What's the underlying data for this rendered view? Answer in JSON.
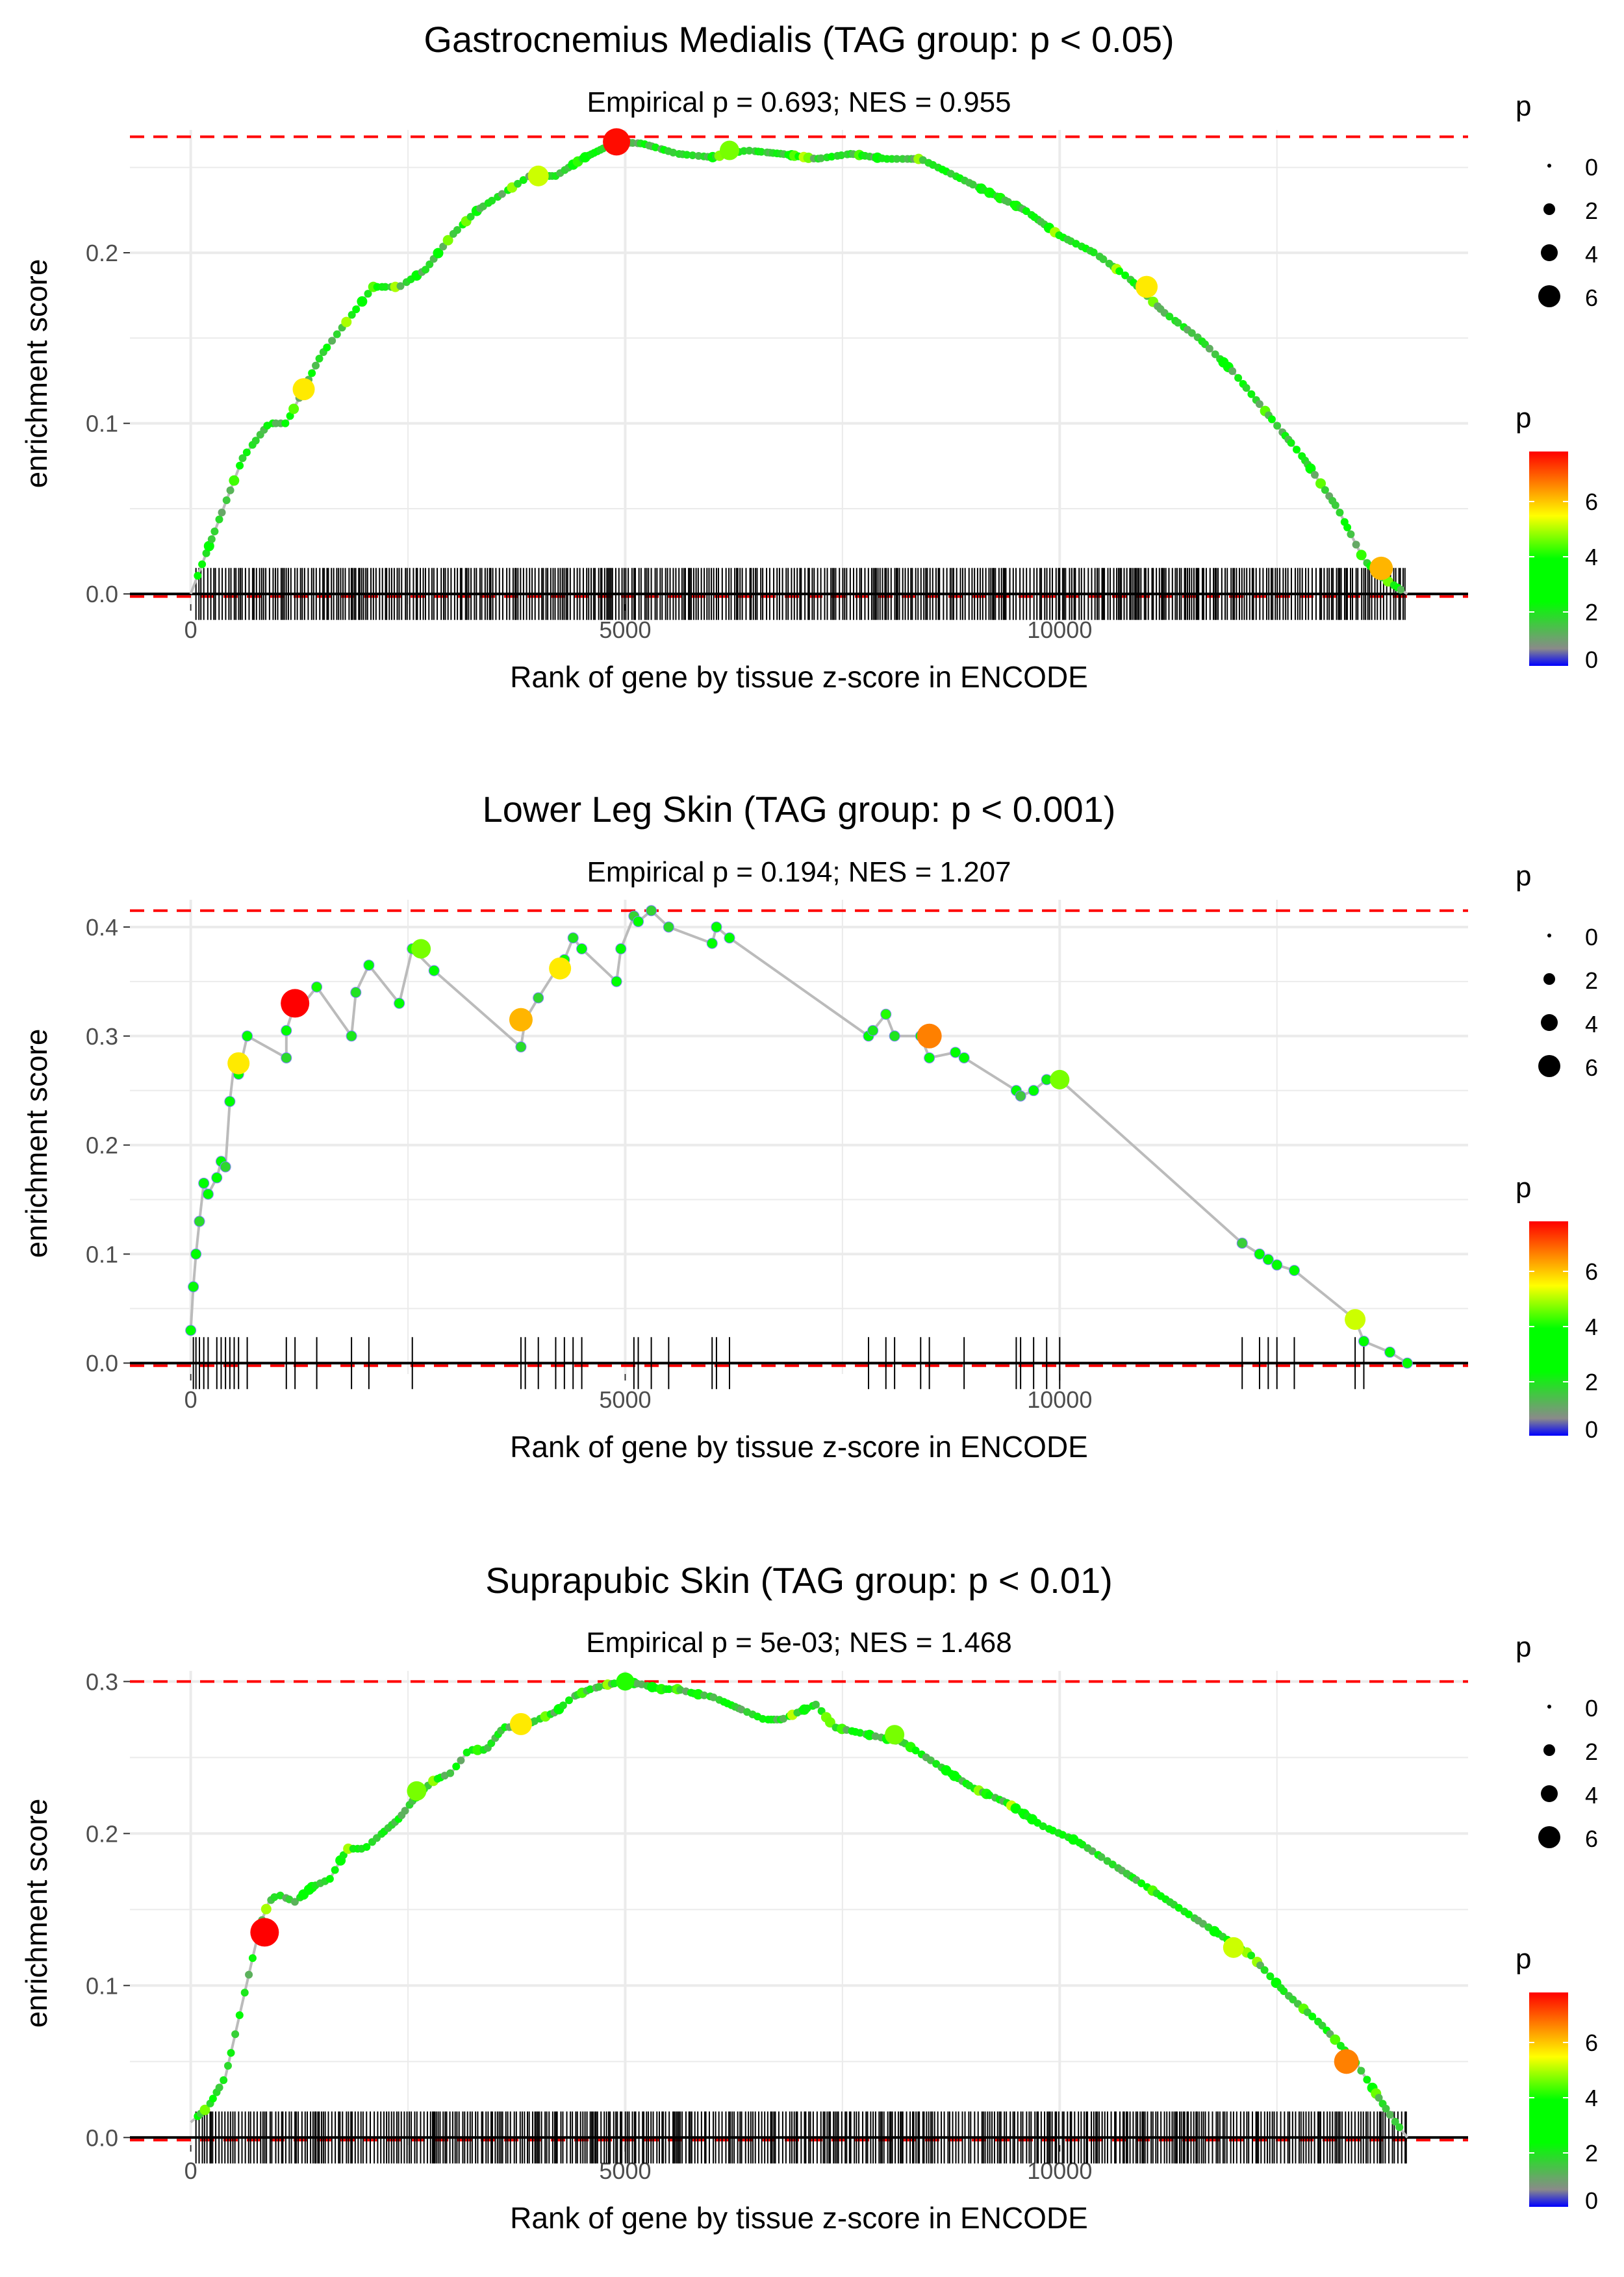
{
  "chart_data": [
    {
      "type": "line",
      "title": "Gastrocnemius Medialis (TAG group: p < 0.05)",
      "subtitle": "Empirical p = 0.693; NES = 0.955",
      "xlabel": "Rank of gene by tissue z-score in ENCODE",
      "ylabel": "enrichment score",
      "xlim": [
        -700,
        14700
      ],
      "ylim": [
        -0.006,
        0.272
      ],
      "x_ticks": [
        0,
        5000,
        10000
      ],
      "x_tick_labels": [
        "0",
        "5000",
        "10000"
      ],
      "y_ticks": [
        0.0,
        0.1,
        0.2
      ],
      "y_tick_labels": [
        "0.0",
        "0.1",
        "0.2"
      ],
      "max_es": 0.268,
      "grid": true,
      "series": [
        {
          "name": "running enrichment score",
          "x": [
            0,
            300,
            600,
            900,
            1100,
            1300,
            1500,
            1800,
            2100,
            2400,
            2700,
            3000,
            3300,
            3600,
            3900,
            4200,
            4500,
            4900,
            5200,
            5600,
            6000,
            6400,
            6800,
            7200,
            7600,
            8000,
            8400,
            8800,
            9200,
            9600,
            10000,
            10400,
            10800,
            11200,
            11600,
            12000,
            12400,
            12800,
            13200,
            13500,
            13700,
            14000
          ],
          "y": [
            0.0,
            0.04,
            0.08,
            0.1,
            0.1,
            0.12,
            0.14,
            0.16,
            0.18,
            0.18,
            0.19,
            0.21,
            0.225,
            0.235,
            0.245,
            0.245,
            0.255,
            0.265,
            0.264,
            0.258,
            0.256,
            0.26,
            0.258,
            0.255,
            0.258,
            0.255,
            0.255,
            0.245,
            0.235,
            0.225,
            0.21,
            0.2,
            0.185,
            0.165,
            0.15,
            0.13,
            0.105,
            0.08,
            0.05,
            0.02,
            0.01,
            0.0
          ]
        }
      ],
      "highlight_points": [
        {
          "x": 4900,
          "y": 0.265,
          "p": 7.5
        },
        {
          "x": 1300,
          "y": 0.12,
          "p": 5.5
        },
        {
          "x": 4000,
          "y": 0.245,
          "p": 5.0
        },
        {
          "x": 6200,
          "y": 0.26,
          "p": 4.5
        },
        {
          "x": 11000,
          "y": 0.18,
          "p": 5.5
        },
        {
          "x": 13700,
          "y": 0.015,
          "p": 6.0
        }
      ],
      "hits": "dense",
      "legend_size": {
        "title": "p",
        "labels": [
          "0",
          "2",
          "4",
          "6"
        ]
      },
      "legend_color": {
        "title": "p",
        "labels": [
          "6",
          "4",
          "2",
          "0"
        ],
        "colors": [
          "#ff0000",
          "#ff8000",
          "#ffff00",
          "#00ff00",
          "#8a8a8a",
          "#0000ff"
        ]
      }
    },
    {
      "type": "line",
      "title": "Lower Leg Skin (TAG group: p < 0.001)",
      "subtitle": "Empirical p = 0.194; NES = 1.207",
      "xlabel": "Rank of gene by tissue z-score in ENCODE",
      "ylabel": "enrichment score",
      "xlim": [
        -700,
        14700
      ],
      "ylim": [
        -0.01,
        0.425
      ],
      "x_ticks": [
        0,
        5000,
        10000
      ],
      "x_tick_labels": [
        "0",
        "5000",
        "10000"
      ],
      "y_ticks": [
        0.0,
        0.1,
        0.2,
        0.3,
        0.4
      ],
      "y_tick_labels": [
        "0.0",
        "0.1",
        "0.2",
        "0.3",
        "0.4"
      ],
      "max_es": 0.415,
      "grid": true,
      "series": [
        {
          "name": "running enrichment score",
          "x": [
            0,
            30,
            60,
            100,
            150,
            200,
            300,
            350,
            400,
            450,
            500,
            550,
            650,
            1100,
            1100,
            1200,
            1250,
            1450,
            1850,
            1900,
            2050,
            2400,
            2550,
            2800,
            3800,
            3850,
            4000,
            4200,
            4300,
            4400,
            4500,
            4900,
            4950,
            5100,
            5150,
            5300,
            5500,
            6000,
            6050,
            6200,
            7800,
            7850,
            8000,
            8100,
            8400,
            8500,
            8800,
            8900,
            9500,
            9550,
            9700,
            9850,
            10000,
            12100,
            12300,
            12400,
            12500,
            12700,
            13400,
            13500,
            13800,
            14000
          ],
          "y": [
            0.03,
            0.07,
            0.1,
            0.13,
            0.165,
            0.155,
            0.17,
            0.185,
            0.18,
            0.24,
            0.275,
            0.265,
            0.3,
            0.28,
            0.305,
            0.33,
            0.325,
            0.345,
            0.3,
            0.34,
            0.365,
            0.33,
            0.38,
            0.36,
            0.29,
            0.315,
            0.335,
            0.36,
            0.37,
            0.39,
            0.38,
            0.35,
            0.38,
            0.41,
            0.405,
            0.415,
            0.4,
            0.385,
            0.4,
            0.39,
            0.3,
            0.305,
            0.32,
            0.3,
            0.3,
            0.28,
            0.285,
            0.28,
            0.25,
            0.245,
            0.25,
            0.26,
            0.26,
            0.11,
            0.1,
            0.095,
            0.09,
            0.085,
            0.04,
            0.02,
            0.01,
            0.0
          ]
        }
      ],
      "highlight_points": [
        {
          "x": 1200,
          "y": 0.33,
          "p": 8.0
        },
        {
          "x": 8500,
          "y": 0.3,
          "p": 6.5
        },
        {
          "x": 3800,
          "y": 0.315,
          "p": 6.0
        },
        {
          "x": 4250,
          "y": 0.362,
          "p": 5.5
        },
        {
          "x": 550,
          "y": 0.275,
          "p": 5.5
        },
        {
          "x": 2650,
          "y": 0.38,
          "p": 4.5
        },
        {
          "x": 10000,
          "y": 0.26,
          "p": 4.5
        },
        {
          "x": 13400,
          "y": 0.04,
          "p": 5.0
        }
      ],
      "hits": "sparse",
      "hit_positions": [
        30,
        60,
        100,
        150,
        200,
        300,
        350,
        400,
        450,
        500,
        550,
        650,
        1100,
        1200,
        1450,
        1850,
        2050,
        2550,
        3800,
        3850,
        4000,
        4200,
        4300,
        4400,
        4500,
        5100,
        5150,
        5300,
        5500,
        6000,
        6050,
        6200,
        7800,
        8000,
        8100,
        8400,
        8500,
        8900,
        9500,
        9550,
        9700,
        9850,
        10000,
        12100,
        12300,
        12400,
        12500,
        12700,
        13400,
        13500
      ],
      "legend_size": {
        "title": "p",
        "labels": [
          "0",
          "2",
          "4",
          "6"
        ]
      },
      "legend_color": {
        "title": "p",
        "labels": [
          "6",
          "4",
          "2",
          "0"
        ],
        "colors": [
          "#ff0000",
          "#ff8000",
          "#ffff00",
          "#00ff00",
          "#8a8a8a",
          "#0000ff"
        ]
      }
    },
    {
      "type": "line",
      "title": "Suprapubic Skin (TAG group: p < 0.01)",
      "subtitle": "Empirical p = 5e-03; NES = 1.468",
      "xlabel": "Rank of gene by tissue z-score in ENCODE",
      "ylabel": "enrichment score",
      "xlim": [
        -700,
        14700
      ],
      "ylim": [
        -0.005,
        0.307
      ],
      "x_ticks": [
        0,
        5000,
        10000
      ],
      "x_tick_labels": [
        "0",
        "5000",
        "10000"
      ],
      "y_ticks": [
        0.0,
        0.1,
        0.2,
        0.3
      ],
      "y_tick_labels": [
        "0.0",
        "0.1",
        "0.2",
        "0.3"
      ],
      "max_es": 0.3,
      "grid": true,
      "series": [
        {
          "name": "running enrichment score",
          "x": [
            0,
            200,
            400,
            600,
            800,
            900,
            1000,
            1200,
            1400,
            1600,
            1800,
            2000,
            2200,
            2400,
            2600,
            2800,
            3000,
            3200,
            3400,
            3600,
            3800,
            4000,
            4200,
            4400,
            4600,
            4800,
            5000,
            5200,
            5400,
            5600,
            5800,
            6000,
            6200,
            6400,
            6600,
            6800,
            7000,
            7200,
            7400,
            7800,
            8200,
            8600,
            9000,
            9400,
            9800,
            10200,
            10600,
            11000,
            11400,
            11800,
            12200,
            12600,
            13000,
            13400,
            13800,
            14000
          ],
          "y": [
            0.01,
            0.02,
            0.04,
            0.09,
            0.14,
            0.155,
            0.16,
            0.155,
            0.165,
            0.17,
            0.19,
            0.19,
            0.2,
            0.21,
            0.225,
            0.235,
            0.24,
            0.255,
            0.255,
            0.27,
            0.27,
            0.275,
            0.28,
            0.29,
            0.295,
            0.298,
            0.3,
            0.298,
            0.295,
            0.295,
            0.292,
            0.29,
            0.285,
            0.28,
            0.275,
            0.275,
            0.28,
            0.285,
            0.27,
            0.265,
            0.26,
            0.245,
            0.23,
            0.22,
            0.205,
            0.195,
            0.18,
            0.165,
            0.15,
            0.135,
            0.12,
            0.095,
            0.075,
            0.05,
            0.015,
            0.0
          ]
        }
      ],
      "highlight_points": [
        {
          "x": 850,
          "y": 0.135,
          "p": 8.0
        },
        {
          "x": 13300,
          "y": 0.05,
          "p": 6.5
        },
        {
          "x": 3800,
          "y": 0.272,
          "p": 5.5
        },
        {
          "x": 2600,
          "y": 0.228,
          "p": 4.5
        },
        {
          "x": 8100,
          "y": 0.265,
          "p": 4.5
        },
        {
          "x": 12000,
          "y": 0.125,
          "p": 5.0
        },
        {
          "x": 5000,
          "y": 0.3,
          "p": 4.0
        }
      ],
      "hits": "dense",
      "legend_size": {
        "title": "p",
        "labels": [
          "0",
          "2",
          "4",
          "6"
        ]
      },
      "legend_color": {
        "title": "p",
        "labels": [
          "6",
          "4",
          "2",
          "0"
        ],
        "colors": [
          "#ff0000",
          "#ff8000",
          "#ffff00",
          "#00ff00",
          "#8a8a8a",
          "#0000ff"
        ]
      }
    }
  ]
}
